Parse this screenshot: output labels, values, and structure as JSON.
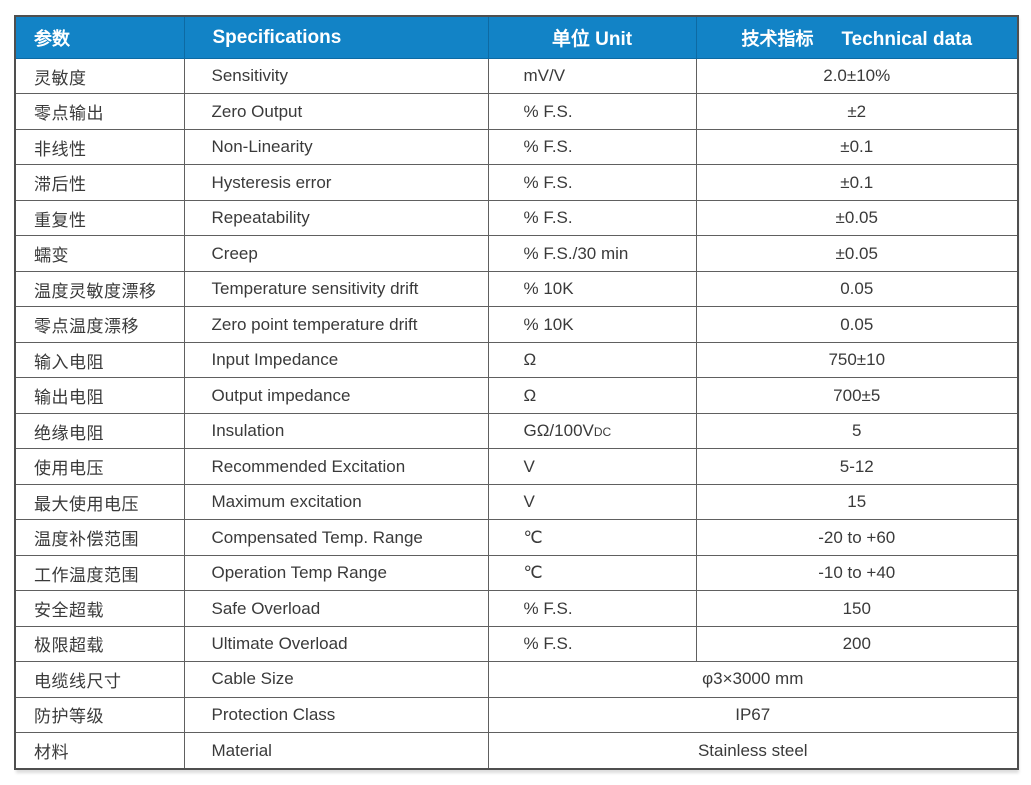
{
  "table": {
    "header": {
      "col_param": "参数",
      "col_spec": "Specifications",
      "col_unit": "单位 Unit",
      "col_tech_zh": "技术指标",
      "col_tech_en": "Technical data"
    },
    "rows": [
      {
        "param": "灵敏度",
        "spec": "Sensitivity",
        "unit": "mV/V",
        "value": "2.0±10%"
      },
      {
        "param": "零点输出",
        "spec": "Zero Output",
        "unit": "% F.S.",
        "value": "±2"
      },
      {
        "param": "非线性",
        "spec": "Non-Linearity",
        "unit": "% F.S.",
        "value": "±0.1"
      },
      {
        "param": "滞后性",
        "spec": "Hysteresis error",
        "unit": "% F.S.",
        "value": "±0.1"
      },
      {
        "param": "重复性",
        "spec": "Repeatability",
        "unit": "% F.S.",
        "value": "±0.05"
      },
      {
        "param": "蠕变",
        "spec": "Creep",
        "unit": "% F.S./30 min",
        "value": "±0.05"
      },
      {
        "param": "温度灵敏度漂移",
        "spec": "Temperature sensitivity drift",
        "unit": "% 10K",
        "value": "0.05"
      },
      {
        "param": "零点温度漂移",
        "spec": "Zero point temperature drift",
        "unit": "% 10K",
        "value": "0.05"
      },
      {
        "param": "输入电阻",
        "spec": "Input Impedance",
        "unit": "Ω",
        "value": "750±10"
      },
      {
        "param": "输出电阻",
        "spec": "Output impedance",
        "unit": "Ω",
        "value": "700±5"
      },
      {
        "param": "绝缘电阻",
        "spec": "Insulation",
        "unit": "GΩ/100V",
        "unit_small": "DC",
        "value": "5"
      },
      {
        "param": "使用电压",
        "spec": "Recommended Excitation",
        "unit": "V",
        "value": "5-12"
      },
      {
        "param": "最大使用电压",
        "spec": "Maximum excitation",
        "unit": "V",
        "value": "15"
      },
      {
        "param": "温度补偿范围",
        "spec": "Compensated Temp. Range",
        "unit": "℃",
        "value": "-20 to +60"
      },
      {
        "param": "工作温度范围",
        "spec": "Operation Temp Range",
        "unit": "℃",
        "value": "-10 to +40"
      },
      {
        "param": "安全超载",
        "spec": "Safe Overload",
        "unit": "% F.S.",
        "value": "150"
      },
      {
        "param": "极限超载",
        "spec": "Ultimate Overload",
        "unit": "% F.S.",
        "value": "200"
      },
      {
        "param": "电缆线尺寸",
        "spec": "Cable Size",
        "merged": "φ3×3000 mm"
      },
      {
        "param": "防护等级",
        "spec": "Protection Class",
        "merged": "IP67"
      },
      {
        "param": "材料",
        "spec": "Material",
        "merged": "Stainless steel"
      }
    ],
    "colors": {
      "header_bg": "#1283c6",
      "header_text": "#ffffff",
      "body_text": "#3a3a3a",
      "grid_border": "#606060",
      "outer_border": "#4f4f4f"
    }
  }
}
